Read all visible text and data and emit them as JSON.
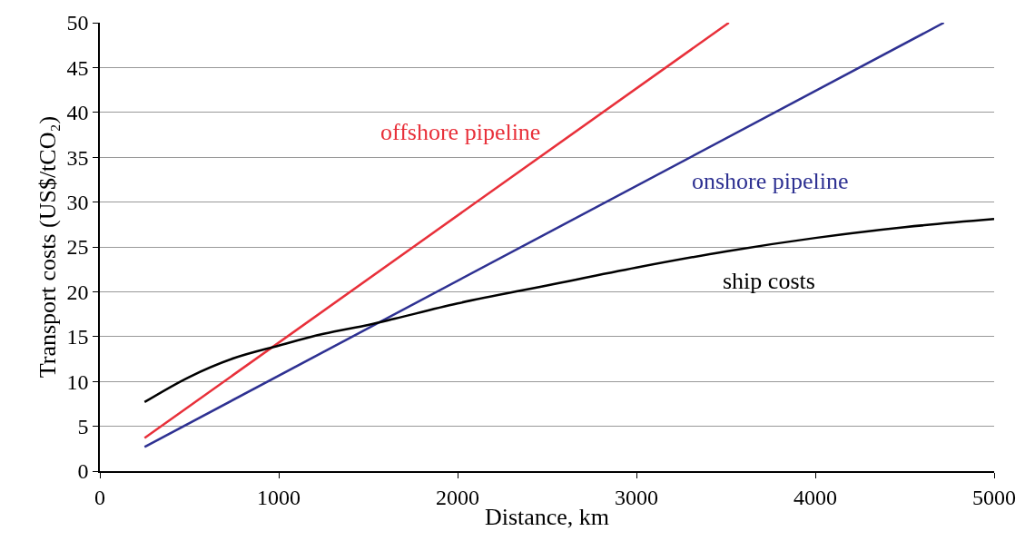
{
  "chart_data": {
    "type": "line",
    "xlabel": "Distance, km",
    "ylabel": "Transport costs (US$/tCO₂)",
    "xlim": [
      0,
      5000
    ],
    "xticks": [
      0,
      1000,
      2000,
      3000,
      4000,
      5000
    ],
    "ylim": [
      0,
      50
    ],
    "yticks": [
      0,
      5,
      10,
      15,
      20,
      25,
      30,
      35,
      40,
      45,
      50
    ],
    "grid": "y",
    "marker": "none",
    "line_style": "solid",
    "series": [
      {
        "name": "offshore pipeline",
        "color": "#e8303a",
        "x": [
          250,
          3517
        ],
        "values": [
          3.7,
          50
        ]
      },
      {
        "name": "onshore pipeline",
        "color": "#2e3192",
        "x": [
          250,
          4719
        ],
        "values": [
          2.7,
          50
        ]
      },
      {
        "name": "ship costs",
        "color": "#000000",
        "x": [
          250,
          500,
          750,
          1000,
          1250,
          1500,
          1650,
          2000,
          2500,
          3000,
          3500,
          4000,
          4500,
          5000
        ],
        "values": [
          7.7,
          10.5,
          12.6,
          14.0,
          15.3,
          16.3,
          17.0,
          18.7,
          20.7,
          22.7,
          24.5,
          26.0,
          27.2,
          28.1
        ]
      }
    ]
  }
}
